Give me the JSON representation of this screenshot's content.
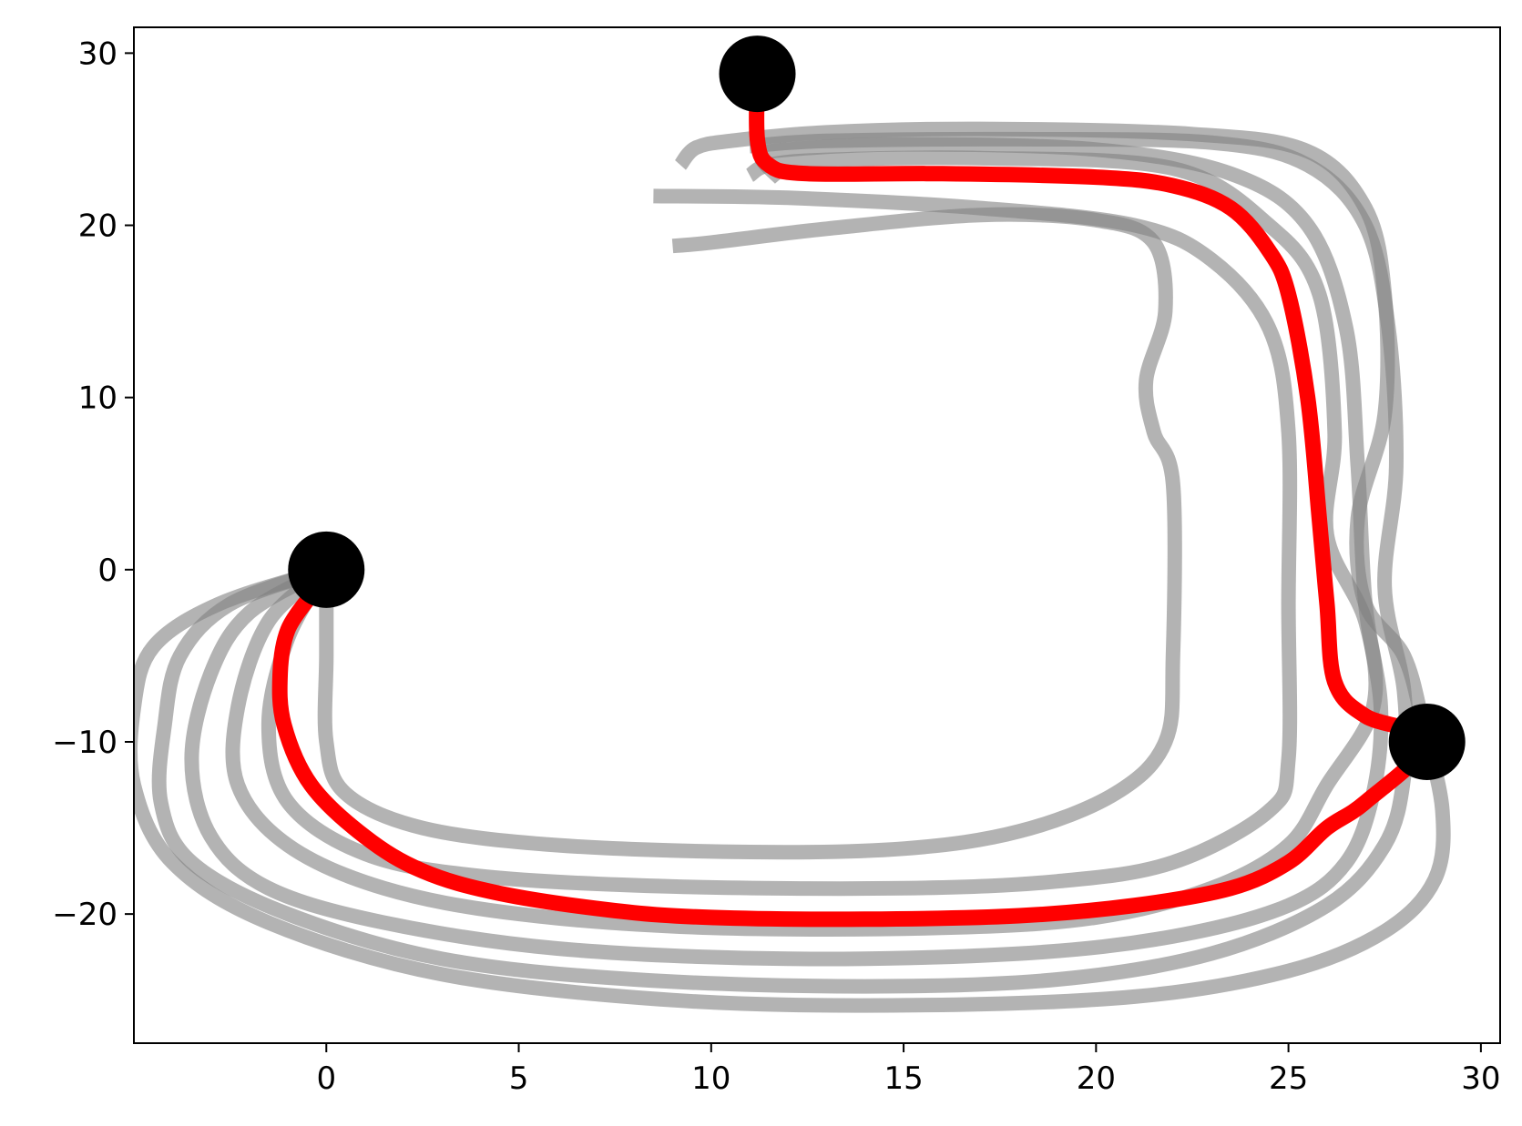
{
  "chart_data": {
    "type": "line",
    "title": "",
    "xlabel": "",
    "ylabel": "",
    "xlim": [
      -5,
      30.5
    ],
    "ylim": [
      -27.5,
      31.5
    ],
    "xticks": [
      0,
      5,
      10,
      15,
      20,
      25,
      30
    ],
    "yticks": [
      -20,
      -10,
      0,
      10,
      20,
      30
    ],
    "grid": false,
    "legend": "none",
    "colors": {
      "highlight": "#ff0000",
      "background_paths": "#808080",
      "markers": "#000000"
    },
    "markers": [
      {
        "x": 0,
        "y": 0
      },
      {
        "x": 11.2,
        "y": 28.8
      },
      {
        "x": 28.6,
        "y": -10.0
      }
    ],
    "highlighted_path": [
      [
        -0.4,
        -1.5
      ],
      [
        -1.0,
        -3.5
      ],
      [
        -1.2,
        -6.0
      ],
      [
        -1.1,
        -9.0
      ],
      [
        -0.4,
        -12.5
      ],
      [
        1.0,
        -15.5
      ],
      [
        2.5,
        -17.5
      ],
      [
        4.5,
        -18.8
      ],
      [
        7.5,
        -19.8
      ],
      [
        10.0,
        -20.2
      ],
      [
        14.0,
        -20.3
      ],
      [
        18.0,
        -20.1
      ],
      [
        21.0,
        -19.5
      ],
      [
        23.5,
        -18.5
      ],
      [
        25.0,
        -17.0
      ],
      [
        26.0,
        -15.0
      ],
      [
        27.0,
        -13.5
      ],
      [
        28.6,
        -10.0
      ],
      [
        27.0,
        -8.5
      ],
      [
        26.2,
        -6.5
      ],
      [
        26.0,
        -2.0
      ],
      [
        25.8,
        3.0
      ],
      [
        25.5,
        10.0
      ],
      [
        25.0,
        16.0
      ],
      [
        24.5,
        18.5
      ],
      [
        23.5,
        21.0
      ],
      [
        22.0,
        22.3
      ],
      [
        20.0,
        22.8
      ],
      [
        16.0,
        23.0
      ],
      [
        12.5,
        23.0
      ],
      [
        11.5,
        23.5
      ],
      [
        11.2,
        25.0
      ],
      [
        11.2,
        28.8
      ]
    ],
    "background_paths": [
      [
        [
          0.0,
          0.0
        ],
        [
          0.0,
          -5.0
        ],
        [
          0.0,
          -10.0
        ],
        [
          0.5,
          -13.0
        ],
        [
          2.5,
          -15.0
        ],
        [
          6.0,
          -16.0
        ],
        [
          11.0,
          -16.4
        ],
        [
          15.0,
          -16.2
        ],
        [
          18.0,
          -15.2
        ],
        [
          20.5,
          -13.0
        ],
        [
          21.8,
          -10.0
        ],
        [
          22.0,
          -5.0
        ],
        [
          22.0,
          5.0
        ],
        [
          21.5,
          8.0
        ],
        [
          21.3,
          11.0
        ],
        [
          21.8,
          15.0
        ],
        [
          21.5,
          19.0
        ],
        [
          20.0,
          20.3
        ],
        [
          17.0,
          20.6
        ],
        [
          13.0,
          19.8
        ],
        [
          10.0,
          19.0
        ],
        [
          9.0,
          18.8
        ]
      ],
      [
        [
          0.0,
          0.0
        ],
        [
          -1.0,
          -4.0
        ],
        [
          -1.5,
          -9.0
        ],
        [
          -1.0,
          -13.5
        ],
        [
          1.0,
          -16.5
        ],
        [
          4.0,
          -17.8
        ],
        [
          9.0,
          -18.4
        ],
        [
          15.0,
          -18.5
        ],
        [
          19.0,
          -18.1
        ],
        [
          22.0,
          -17.0
        ],
        [
          24.5,
          -14.0
        ],
        [
          25.0,
          -11.0
        ],
        [
          25.0,
          -2.0
        ],
        [
          25.0,
          8.0
        ],
        [
          24.5,
          14.0
        ],
        [
          23.0,
          18.0
        ],
        [
          21.0,
          20.0
        ],
        [
          17.0,
          21.0
        ],
        [
          12.0,
          21.6
        ],
        [
          8.5,
          21.7
        ]
      ],
      [
        [
          0.0,
          0.0
        ],
        [
          -1.5,
          -3.0
        ],
        [
          -2.3,
          -8.0
        ],
        [
          -2.3,
          -12.5
        ],
        [
          -1.0,
          -16.0
        ],
        [
          1.5,
          -18.5
        ],
        [
          5.0,
          -20.0
        ],
        [
          10.0,
          -20.8
        ],
        [
          16.0,
          -20.8
        ],
        [
          20.0,
          -20.2
        ],
        [
          23.0,
          -18.5
        ],
        [
          25.0,
          -16.0
        ],
        [
          26.0,
          -12.5
        ],
        [
          27.2,
          -8.0
        ],
        [
          27.0,
          -3.0
        ],
        [
          26.0,
          2.0
        ],
        [
          26.2,
          8.0
        ],
        [
          25.8,
          16.0
        ],
        [
          24.5,
          20.0
        ],
        [
          22.0,
          23.3
        ],
        [
          17.0,
          23.9
        ],
        [
          13.0,
          23.8
        ],
        [
          11.5,
          23.5
        ],
        [
          11.0,
          22.9
        ]
      ],
      [
        [
          0.0,
          0.0
        ],
        [
          -2.0,
          -2.5
        ],
        [
          -3.0,
          -6.0
        ],
        [
          -3.5,
          -11.0
        ],
        [
          -3.0,
          -15.5
        ],
        [
          -1.5,
          -18.5
        ],
        [
          1.5,
          -20.5
        ],
        [
          6.0,
          -22.0
        ],
        [
          12.0,
          -22.6
        ],
        [
          18.0,
          -22.3
        ],
        [
          22.0,
          -21.3
        ],
        [
          25.0,
          -19.5
        ],
        [
          26.5,
          -17.0
        ],
        [
          27.2,
          -13.0
        ],
        [
          27.4,
          -8.0
        ],
        [
          27.0,
          -2.0
        ],
        [
          26.8,
          6.0
        ],
        [
          26.5,
          14.0
        ],
        [
          25.5,
          20.0
        ],
        [
          23.5,
          23.0
        ],
        [
          20.0,
          24.4
        ],
        [
          15.0,
          24.7
        ],
        [
          12.0,
          24.4
        ],
        [
          11.3,
          24.0
        ],
        [
          11.8,
          22.7
        ]
      ],
      [
        [
          0.0,
          0.0
        ],
        [
          -2.5,
          -2.0
        ],
        [
          -3.8,
          -5.0
        ],
        [
          -4.2,
          -9.0
        ],
        [
          -4.3,
          -13.5
        ],
        [
          -3.5,
          -17.0
        ],
        [
          -1.0,
          -20.0
        ],
        [
          3.0,
          -22.6
        ],
        [
          8.0,
          -23.8
        ],
        [
          14.0,
          -24.2
        ],
        [
          19.0,
          -23.8
        ],
        [
          23.0,
          -22.3
        ],
        [
          26.0,
          -19.5
        ],
        [
          27.5,
          -16.0
        ],
        [
          28.0,
          -12.0
        ],
        [
          28.0,
          -7.0
        ],
        [
          27.5,
          -1.0
        ],
        [
          27.8,
          6.0
        ],
        [
          27.6,
          14.0
        ],
        [
          27.0,
          20.0
        ],
        [
          25.5,
          23.5
        ],
        [
          23.0,
          24.8
        ],
        [
          18.0,
          25.0
        ],
        [
          13.0,
          24.9
        ],
        [
          11.0,
          24.6
        ]
      ],
      [
        [
          0.0,
          0.0
        ],
        [
          -2.8,
          -2.0
        ],
        [
          -4.5,
          -4.5
        ],
        [
          -5.0,
          -8.0
        ],
        [
          -5.0,
          -12.5
        ],
        [
          -4.0,
          -17.0
        ],
        [
          -1.5,
          -20.5
        ],
        [
          3.0,
          -23.5
        ],
        [
          9.0,
          -25.0
        ],
        [
          15.0,
          -25.3
        ],
        [
          21.0,
          -24.8
        ],
        [
          25.0,
          -23.3
        ],
        [
          27.5,
          -21.0
        ],
        [
          28.8,
          -18.0
        ],
        [
          29.0,
          -14.0
        ],
        [
          28.5,
          -9.0
        ],
        [
          28.0,
          -5.0
        ],
        [
          27.0,
          -2.0
        ],
        [
          26.8,
          3.0
        ],
        [
          27.5,
          9.0
        ],
        [
          27.5,
          16.0
        ],
        [
          27.0,
          21.0
        ],
        [
          25.5,
          24.3
        ],
        [
          22.5,
          25.3
        ],
        [
          17.0,
          25.6
        ],
        [
          13.0,
          25.4
        ],
        [
          10.5,
          24.9
        ],
        [
          9.6,
          24.5
        ],
        [
          9.2,
          23.5
        ]
      ]
    ]
  },
  "axes": {
    "x_tick_labels": [
      "0",
      "5",
      "10",
      "15",
      "20",
      "25",
      "30"
    ],
    "y_tick_labels": [
      "−20",
      "−10",
      "0",
      "10",
      "20",
      "30"
    ]
  }
}
